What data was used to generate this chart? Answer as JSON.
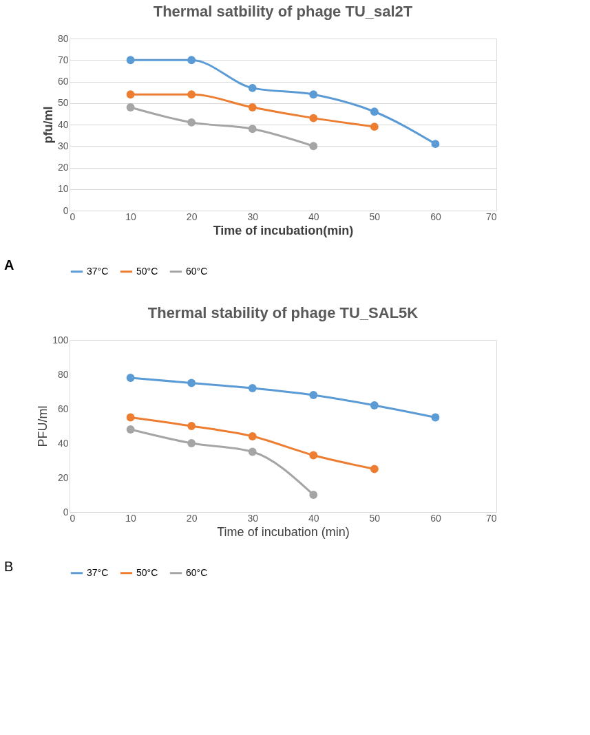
{
  "chart_data": [
    {
      "type": "line",
      "title": "Thermal satbility of phage TU_sal2T",
      "xlabel": "Time of incubation(min)",
      "ylabel": "pfu/ml",
      "xlim": [
        0,
        70
      ],
      "xticks": [
        0,
        10,
        20,
        30,
        40,
        50,
        60,
        70
      ],
      "ylim": [
        0,
        80
      ],
      "yticks": [
        0,
        10,
        20,
        30,
        40,
        50,
        60,
        70,
        80
      ],
      "grid": "y",
      "legend": "bottom",
      "marker": "circle",
      "line_style": "solid",
      "annotations": [
        "A"
      ],
      "x": [
        10,
        20,
        30,
        40,
        50,
        60
      ],
      "series": [
        {
          "name": "37°C",
          "color": "#5b9bd5",
          "values": [
            70,
            70,
            57,
            54,
            46,
            31
          ]
        },
        {
          "name": "50°C",
          "color": "#ed7d31",
          "values": [
            54,
            54,
            48,
            43,
            39,
            null
          ]
        },
        {
          "name": "60°C",
          "color": "#a5a5a5",
          "values": [
            48,
            41,
            38,
            30,
            null,
            null
          ]
        }
      ]
    },
    {
      "type": "line",
      "title": "Thermal stability of phage TU_SAL5K",
      "xlabel": "Time of incubation (min)",
      "ylabel": "PFU/ml",
      "xlim": [
        0,
        70
      ],
      "xticks": [
        0,
        10,
        20,
        30,
        40,
        50,
        60,
        70
      ],
      "ylim": [
        0,
        100
      ],
      "yticks": [
        0,
        20,
        40,
        60,
        80,
        100
      ],
      "legend": "bottom",
      "marker": "circle",
      "line_style": "solid",
      "annotations": [
        "B"
      ],
      "x": [
        10,
        20,
        30,
        40,
        50,
        60
      ],
      "series": [
        {
          "name": "37°C",
          "color": "#5b9bd5",
          "values": [
            78,
            75,
            72,
            68,
            62,
            55
          ]
        },
        {
          "name": "50°C",
          "color": "#ed7d31",
          "values": [
            55,
            50,
            44,
            33,
            25,
            null
          ]
        },
        {
          "name": "60°C",
          "color": "#a5a5a5",
          "values": [
            48,
            40,
            35,
            10,
            null,
            null
          ]
        }
      ]
    }
  ]
}
